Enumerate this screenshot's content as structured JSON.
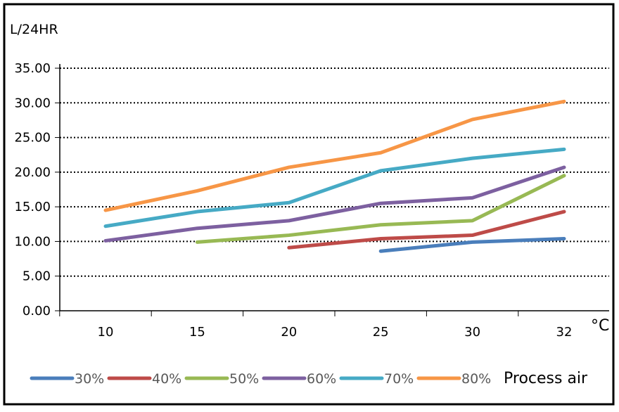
{
  "chart_data": {
    "type": "line",
    "ylabel": "L/24HR",
    "xlabel": "°C",
    "categories": [
      "10",
      "15",
      "20",
      "25",
      "30",
      "32"
    ],
    "ylim": [
      0,
      35
    ],
    "yticks": [
      "0.00",
      "5.00",
      "10.00",
      "15.00",
      "20.00",
      "25.00",
      "30.00",
      "35.00"
    ],
    "grid": "dotted-horizontal",
    "legend_position": "bottom",
    "legend_title": "Process air",
    "series": [
      {
        "name": "30%",
        "color": "#4a7ebb",
        "values": [
          null,
          null,
          null,
          8.6,
          9.9,
          10.4
        ]
      },
      {
        "name": "40%",
        "color": "#be4b48",
        "values": [
          null,
          null,
          9.1,
          10.4,
          10.9,
          14.3
        ]
      },
      {
        "name": "50%",
        "color": "#98b954",
        "values": [
          null,
          9.9,
          10.9,
          12.4,
          13.0,
          19.5
        ]
      },
      {
        "name": "60%",
        "color": "#7d60a0",
        "values": [
          10.1,
          11.9,
          13.0,
          15.5,
          16.3,
          20.7
        ]
      },
      {
        "name": "70%",
        "color": "#46aac5",
        "values": [
          12.2,
          14.3,
          15.6,
          20.2,
          22.0,
          23.3
        ]
      },
      {
        "name": "80%",
        "color": "#f79646",
        "values": [
          14.5,
          17.3,
          20.7,
          22.8,
          27.6,
          30.2
        ]
      }
    ]
  }
}
